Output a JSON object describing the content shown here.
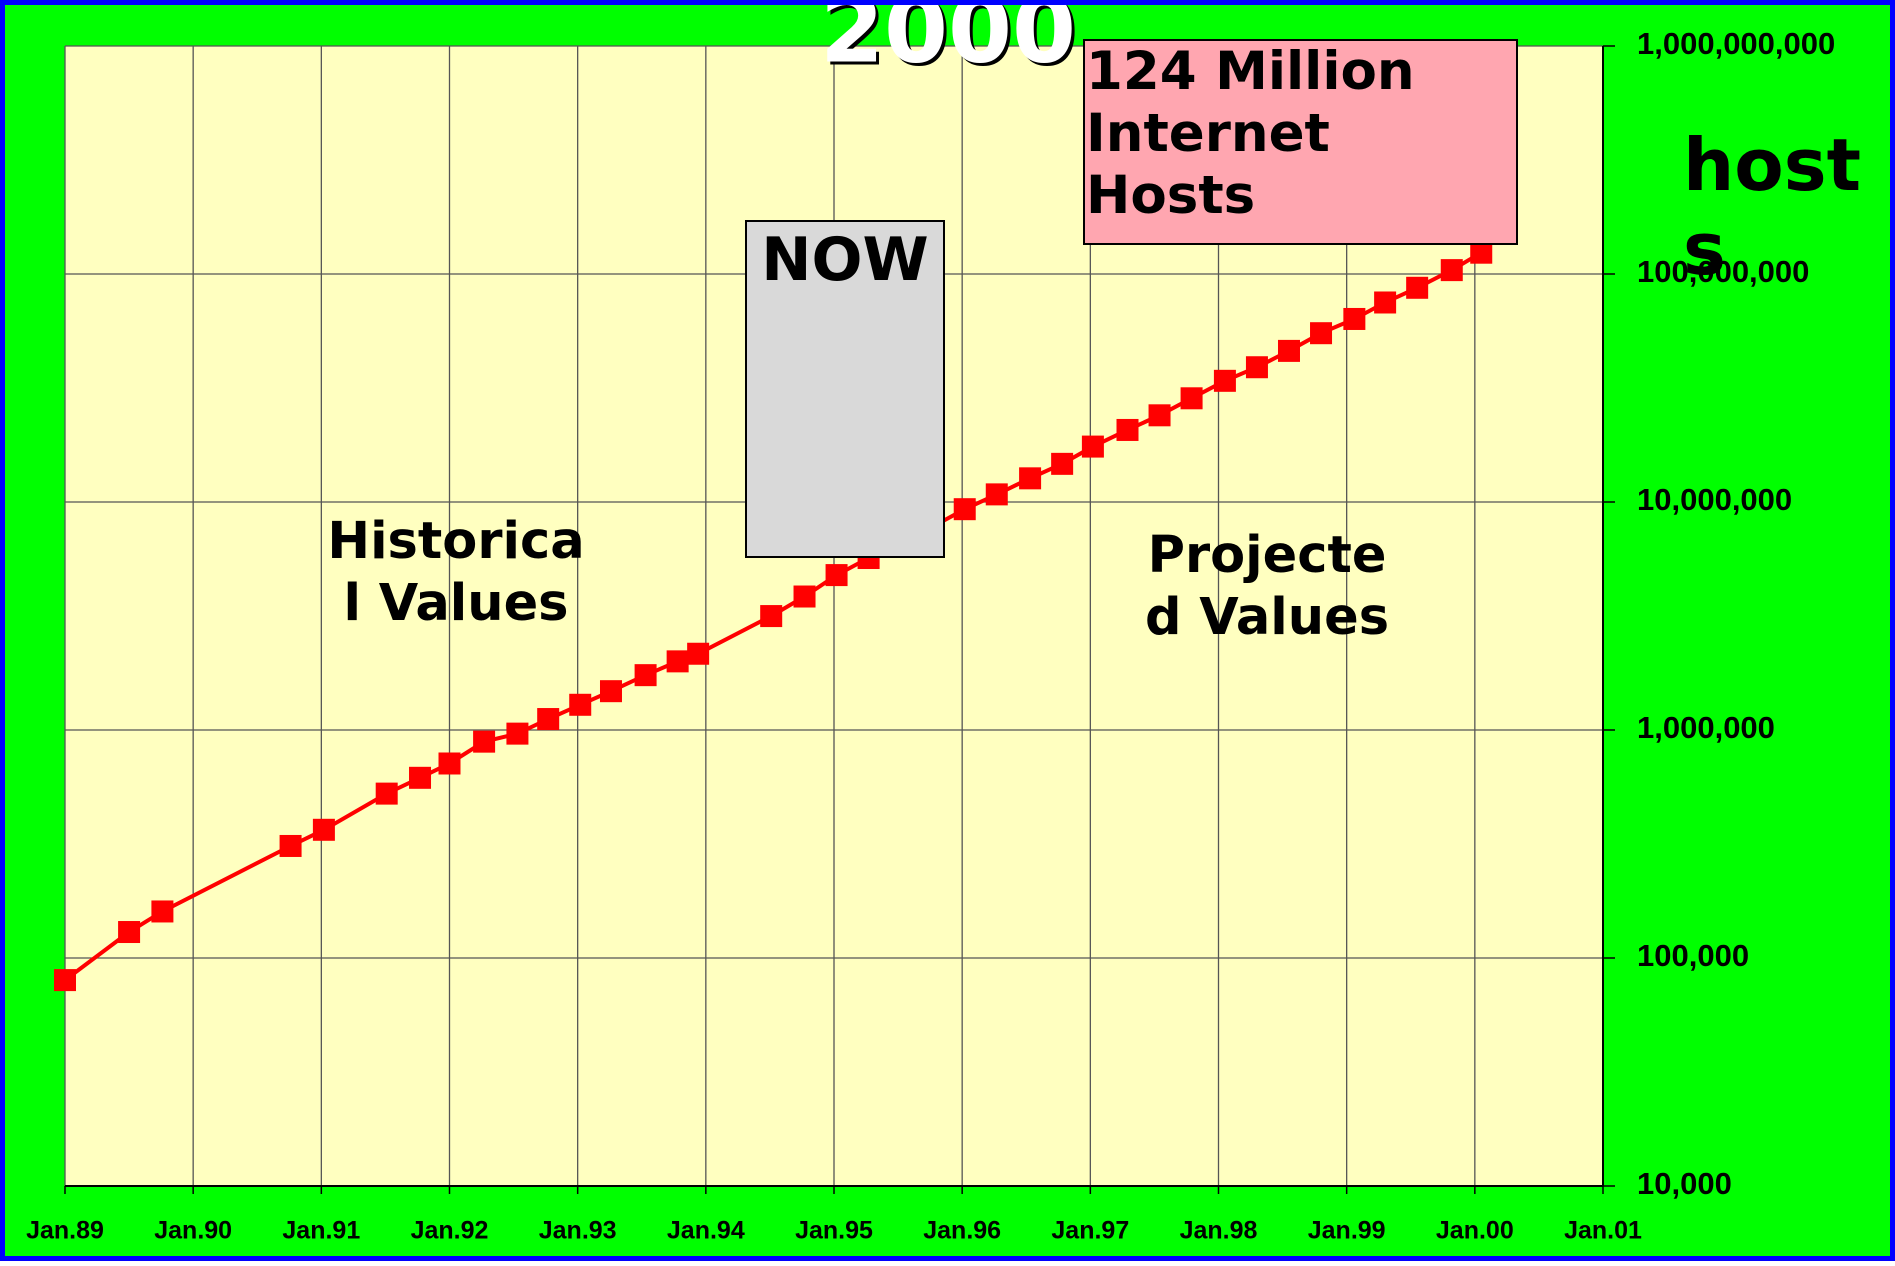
{
  "chart_data": {
    "type": "line",
    "title": "2000",
    "y_label": "hosts",
    "log_scale": true,
    "grid": true,
    "x": [
      1989.0,
      1989.5,
      1989.76,
      1990.76,
      1991.02,
      1991.51,
      1991.77,
      1992.0,
      1992.27,
      1992.53,
      1992.77,
      1993.02,
      1993.26,
      1993.53,
      1993.78,
      1993.94,
      1994.51,
      1994.77,
      1995.02,
      1995.27,
      1995.52,
      1995.77,
      1996.02,
      1996.27,
      1996.53,
      1996.78,
      1997.02,
      1997.29,
      1997.54,
      1997.79,
      1998.05,
      1998.3,
      1998.55,
      1998.8,
      1999.06,
      1999.3,
      1999.55,
      1999.82,
      2000.05
    ],
    "series": [
      {
        "color": "#ff0000",
        "values": [
          80000,
          130000,
          160000,
          310000,
          365000,
          526000,
          617000,
          713000,
          889000,
          964000,
          1117000,
          1290000,
          1480000,
          1740000,
          2000000,
          2160000,
          3160000,
          3850000,
          4780000,
          5680000,
          6700000,
          7800000,
          9300000,
          10800000,
          12700000,
          14700000,
          17500000,
          20700000,
          24000000,
          28500000,
          34000000,
          39000000,
          46000000,
          55000000,
          63500000,
          75000000,
          87000000,
          104000000,
          124000000
        ]
      }
    ],
    "xlim": [
      1989,
      2001
    ],
    "xticks": [
      {
        "value": 1989,
        "label": "Jan.89"
      },
      {
        "value": 1990,
        "label": "Jan.90"
      },
      {
        "value": 1991,
        "label": "Jan.91"
      },
      {
        "value": 1992,
        "label": "Jan.92"
      },
      {
        "value": 1993,
        "label": "Jan.93"
      },
      {
        "value": 1994,
        "label": "Jan.94"
      },
      {
        "value": 1995,
        "label": "Jan.95"
      },
      {
        "value": 1996,
        "label": "Jan.96"
      },
      {
        "value": 1997,
        "label": "Jan.97"
      },
      {
        "value": 1998,
        "label": "Jan.98"
      },
      {
        "value": 1999,
        "label": "Jan.99"
      },
      {
        "value": 2000,
        "label": "Jan.00"
      },
      {
        "value": 2001,
        "label": "Jan.01"
      }
    ],
    "ylim": [
      10000,
      1000000000
    ],
    "yticks": [
      {
        "value": 10000,
        "label": "10,000"
      },
      {
        "value": 100000,
        "label": "100,000"
      },
      {
        "value": 1000000,
        "label": "1,000,000"
      },
      {
        "value": 10000000,
        "label": "10,000,000"
      },
      {
        "value": 100000000,
        "label": "100,000,000"
      },
      {
        "value": 1000000000,
        "label": "1,000,000,000"
      }
    ],
    "annotations": [
      "Historical Values",
      "Projected Values",
      "NOW",
      "124 Million Internet Hosts"
    ]
  }
}
